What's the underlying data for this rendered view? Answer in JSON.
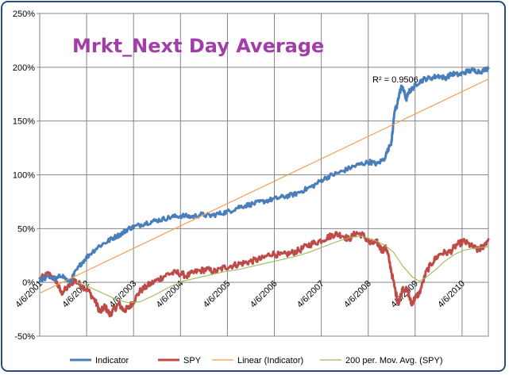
{
  "chart_data": {
    "type": "line",
    "title": "Mrkt_Next Day Average",
    "annotation": "R² = 0.9506",
    "y_ticks": [
      "250%",
      "200%",
      "150%",
      "100%",
      "50%",
      "0%",
      "-50%"
    ],
    "ylim": [
      -50,
      250
    ],
    "x_ticks": [
      "4/6/2001",
      "4/6/2002",
      "4/6/2003",
      "4/6/2004",
      "4/6/2005",
      "4/6/2006",
      "4/6/2007",
      "4/6/2008",
      "4/6/2009",
      "4/6/2010"
    ],
    "x_tick_years": [
      2001.26,
      2002.26,
      2003.26,
      2004.26,
      2005.26,
      2006.26,
      2007.26,
      2008.26,
      2009.26,
      2010.26
    ],
    "xlim": [
      2001.26,
      2010.82
    ],
    "series": [
      {
        "name": "Indicator",
        "color": "#4a7ebb",
        "x": [
          2001.26,
          2001.45,
          2001.62,
          2001.72,
          2001.9,
          2002.0,
          2002.15,
          2002.3,
          2002.5,
          2002.7,
          2002.85,
          2003.0,
          2003.15,
          2003.3,
          2003.5,
          2003.7,
          2003.9,
          2004.1,
          2004.3,
          2004.5,
          2004.7,
          2004.9,
          2005.1,
          2005.3,
          2005.5,
          2005.7,
          2005.9,
          2006.1,
          2006.3,
          2006.5,
          2006.7,
          2006.9,
          2007.1,
          2007.3,
          2007.5,
          2007.7,
          2007.9,
          2008.1,
          2008.3,
          2008.45,
          2008.6,
          2008.75,
          2008.78,
          2008.82,
          2008.87,
          2008.92,
          2008.97,
          2009.02,
          2009.07,
          2009.12,
          2009.2,
          2009.3,
          2009.45,
          2009.6,
          2009.75,
          2009.9,
          2010.05,
          2010.2,
          2010.35,
          2010.5,
          2010.65,
          2010.82
        ],
        "values": [
          2,
          5,
          3,
          7,
          0,
          8,
          18,
          25,
          33,
          38,
          42,
          45,
          50,
          52,
          55,
          57,
          59,
          61,
          62,
          61,
          63,
          62,
          64,
          66,
          70,
          72,
          74,
          76,
          78,
          80,
          82,
          86,
          90,
          96,
          100,
          103,
          107,
          110,
          112,
          110,
          115,
          130,
          140,
          160,
          163,
          175,
          182,
          178,
          170,
          177,
          180,
          185,
          189,
          190,
          192,
          190,
          194,
          193,
          196,
          197,
          196,
          199
        ]
      },
      {
        "name": "SPY",
        "color": "#be4b48",
        "x": [
          2001.26,
          2001.45,
          2001.6,
          2001.72,
          2001.85,
          2002.0,
          2002.15,
          2002.3,
          2002.45,
          2002.55,
          2002.65,
          2002.75,
          2002.85,
          2002.95,
          2003.05,
          2003.15,
          2003.25,
          2003.4,
          2003.6,
          2003.8,
          2004.0,
          2004.2,
          2004.4,
          2004.6,
          2004.8,
          2005.0,
          2005.2,
          2005.4,
          2005.6,
          2005.8,
          2006.0,
          2006.2,
          2006.4,
          2006.6,
          2006.8,
          2007.0,
          2007.2,
          2007.4,
          2007.55,
          2007.7,
          2007.85,
          2008.0,
          2008.15,
          2008.3,
          2008.45,
          2008.55,
          2008.65,
          2008.7,
          2008.8,
          2008.9,
          2009.0,
          2009.1,
          2009.18,
          2009.25,
          2009.35,
          2009.5,
          2009.65,
          2009.8,
          2010.0,
          2010.15,
          2010.3,
          2010.45,
          2010.6,
          2010.7,
          2010.82
        ],
        "values": [
          3,
          8,
          2,
          -10,
          -5,
          2,
          -3,
          -8,
          -18,
          -28,
          -22,
          -30,
          -25,
          -20,
          -26,
          -24,
          -18,
          -8,
          -2,
          3,
          8,
          9,
          6,
          10,
          12,
          10,
          14,
          16,
          18,
          20,
          22,
          27,
          25,
          27,
          30,
          35,
          38,
          42,
          45,
          44,
          40,
          46,
          44,
          36,
          37,
          30,
          32,
          22,
          0,
          -20,
          -5,
          -8,
          -20,
          -15,
          -10,
          10,
          20,
          27,
          28,
          35,
          38,
          34,
          30,
          33,
          40
        ]
      },
      {
        "name": "Linear (Indicator)",
        "color": "#f79646",
        "x": [
          2001.26,
          2010.82
        ],
        "values": [
          -10,
          189
        ]
      },
      {
        "name": "200 per. Mov. Avg. (SPY)",
        "color": "#9bbb59",
        "x": [
          2002.05,
          2002.3,
          2002.6,
          2002.9,
          2003.15,
          2003.4,
          2003.7,
          2004.0,
          2004.3,
          2004.6,
          2004.9,
          2005.2,
          2005.5,
          2005.8,
          2006.1,
          2006.4,
          2006.7,
          2007.0,
          2007.3,
          2007.6,
          2007.9,
          2008.1,
          2008.35,
          2008.6,
          2008.8,
          2009.0,
          2009.2,
          2009.35,
          2009.5,
          2009.7,
          2009.9,
          2010.1,
          2010.3,
          2010.55,
          2010.82
        ],
        "values": [
          0,
          -4,
          -10,
          -16,
          -19,
          -18,
          -12,
          -5,
          1,
          4,
          7,
          10,
          12,
          15,
          18,
          21,
          24,
          28,
          33,
          38,
          42,
          43,
          40,
          35,
          28,
          15,
          5,
          1,
          5,
          12,
          20,
          26,
          30,
          32,
          33
        ]
      }
    ]
  }
}
